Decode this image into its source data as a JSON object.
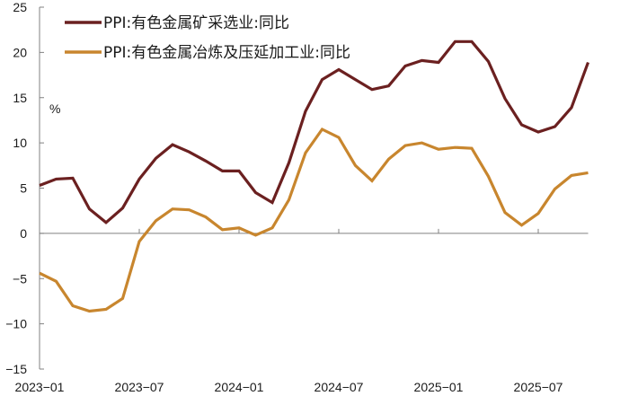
{
  "chart_data": {
    "type": "line",
    "title": "",
    "xlabel": "",
    "ylabel": "%",
    "ylim": [
      -15,
      25
    ],
    "yticks": [
      25,
      20,
      15,
      10,
      5,
      0,
      -5,
      -10,
      -15
    ],
    "xtick_labels": [
      "2023-01",
      "2023-07",
      "2024-01",
      "2024-07",
      "2025-01",
      "2025-07"
    ],
    "grid": false,
    "legend_position": "top-left",
    "x": [
      "2023-01",
      "2023-02",
      "2023-03",
      "2023-04",
      "2023-05",
      "2023-06",
      "2023-07",
      "2023-08",
      "2023-09",
      "2023-10",
      "2023-11",
      "2023-12",
      "2024-01",
      "2024-02",
      "2024-03",
      "2024-04",
      "2024-05",
      "2024-06",
      "2024-07",
      "2024-08",
      "2024-09",
      "2024-10",
      "2024-11",
      "2024-12",
      "2025-01",
      "2025-02",
      "2025-03",
      "2025-04",
      "2025-05",
      "2025-06",
      "2025-07",
      "2025-08",
      "2025-09",
      "2025-10"
    ],
    "series": [
      {
        "name": "PPI:有色金属矿采选业:同比",
        "color": "#6b2020",
        "values": [
          5.3,
          6.0,
          6.1,
          2.7,
          1.2,
          2.8,
          6.0,
          8.3,
          9.8,
          9.0,
          8.0,
          6.9,
          6.9,
          4.5,
          3.4,
          7.8,
          13.5,
          17.0,
          18.1,
          17.0,
          15.9,
          16.3,
          18.5,
          19.1,
          18.9,
          21.2,
          21.2,
          19.0,
          14.9,
          12.0,
          11.2,
          11.8,
          13.9,
          18.9
        ]
      },
      {
        "name": "PPI:有色金属冶炼及压延加工业:同比",
        "color": "#c8862e",
        "values": [
          -4.4,
          -5.3,
          -8.0,
          -8.6,
          -8.4,
          -7.2,
          -0.9,
          1.4,
          2.7,
          2.6,
          1.8,
          0.4,
          0.6,
          -0.2,
          0.6,
          3.7,
          8.9,
          11.5,
          10.6,
          7.5,
          5.8,
          8.2,
          9.7,
          10.0,
          9.3,
          9.5,
          9.4,
          6.3,
          2.3,
          0.9,
          2.2,
          4.9,
          6.4,
          6.7
        ]
      }
    ]
  },
  "legend": {
    "items": [
      {
        "label": "PPI:有色金属矿采选业:同比",
        "color": "#6b2020"
      },
      {
        "label": "PPI:有色金属冶炼及压延加工业:同比",
        "color": "#c8862e"
      }
    ]
  },
  "axis": {
    "unit": "%",
    "axis_color": "#808080"
  }
}
